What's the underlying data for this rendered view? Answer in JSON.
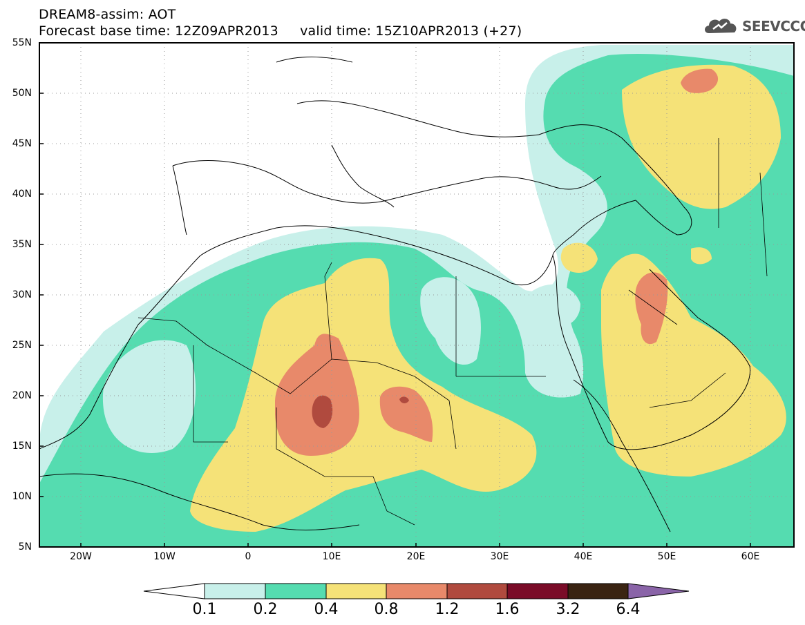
{
  "header": {
    "line1": "DREAM8-assim: AOT",
    "line2": "Forecast base time: 12Z09APR2013     valid time: 15Z10APR2013 (+27)"
  },
  "logo": {
    "text": "SEEVCCC",
    "icon": "cloud-icon"
  },
  "map": {
    "lat_labels": [
      "55N",
      "50N",
      "45N",
      "40N",
      "35N",
      "30N",
      "25N",
      "20N",
      "15N",
      "10N",
      "5N"
    ],
    "lon_labels": [
      "20W",
      "10W",
      "0",
      "10E",
      "20E",
      "30E",
      "40E",
      "50E",
      "60E"
    ],
    "extent": {
      "lon": [
        -25,
        65
      ],
      "lat": [
        5,
        55
      ]
    }
  },
  "colorbar": {
    "labels": [
      "0.1",
      "0.2",
      "0.4",
      "0.8",
      "1.2",
      "1.6",
      "3.2",
      "6.4"
    ],
    "colors": [
      "#ffffff",
      "#c8f0ea",
      "#55dcb0",
      "#f5e278",
      "#e8896a",
      "#b04a3e",
      "#7a0c28",
      "#3a2412",
      "#8a64a8"
    ]
  },
  "colors": {
    "lightcyan": "#c8f0ea",
    "green": "#55dcb0",
    "yellow": "#f5e278",
    "orange": "#e8896a",
    "red": "#b04a3e"
  }
}
